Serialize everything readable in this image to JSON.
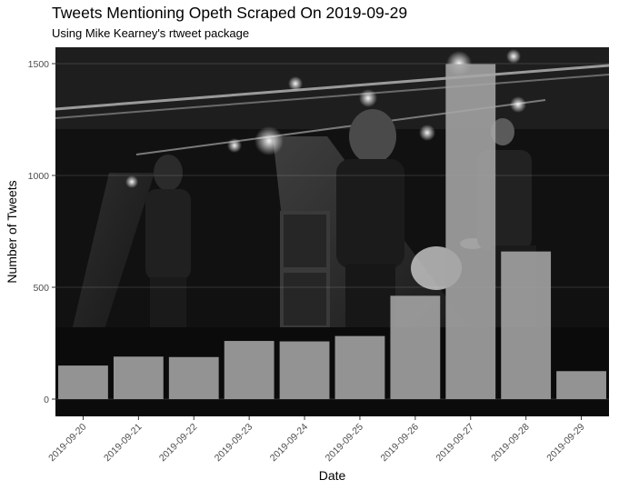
{
  "chart_data": {
    "type": "bar",
    "title": "Tweets Mentioning Opeth Scraped On 2019-09-29",
    "subtitle": "Using Mike Kearney's rtweet package",
    "xlabel": "Date",
    "ylabel": "Number of Tweets",
    "categories": [
      "2019-09-20",
      "2019-09-21",
      "2019-09-22",
      "2019-09-23",
      "2019-09-24",
      "2019-09-25",
      "2019-09-26",
      "2019-09-27",
      "2019-09-28",
      "2019-09-29"
    ],
    "values": [
      150,
      190,
      188,
      260,
      258,
      282,
      462,
      1498,
      660,
      125
    ],
    "ylim": [
      0,
      1500
    ],
    "yticks": [
      "0",
      "500",
      "1000",
      "1500"
    ],
    "bar_color": "#a6a6a6",
    "background": "concert photograph (grayscale)"
  }
}
